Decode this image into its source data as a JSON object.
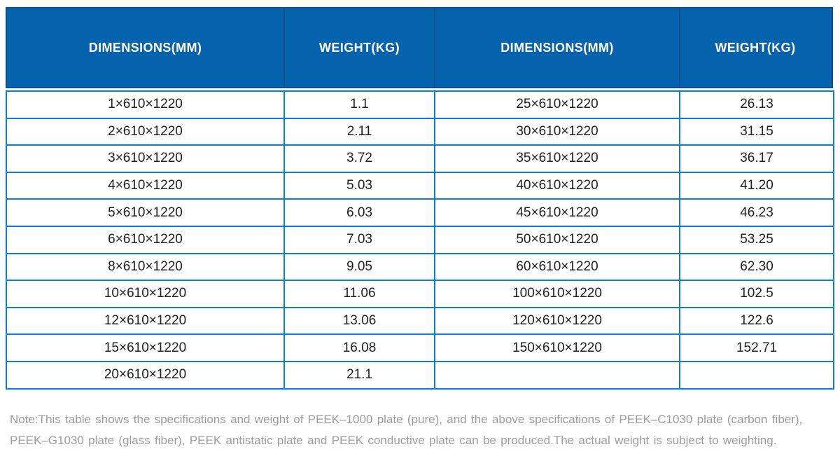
{
  "colors": {
    "header_bg": "#0562ad",
    "header_edge": "#0a4f92",
    "header_sep": "#0a4f92",
    "grid_blue": "#0f7ec6",
    "body_text": "#212121",
    "note_gray": "#9c9c9c",
    "page_bg": "#ffffff"
  },
  "table": {
    "headers": [
      "DIMENSIONS(MM)",
      "WEIGHT(KG)",
      "DIMENSIONS(MM)",
      "WEIGHT(KG)"
    ],
    "rows": [
      [
        "1×610×1220",
        "1.1",
        "25×610×1220",
        "26.13"
      ],
      [
        "2×610×1220",
        "2.11",
        "30×610×1220",
        "31.15"
      ],
      [
        "3×610×1220",
        "3.72",
        "35×610×1220",
        "36.17"
      ],
      [
        "4×610×1220",
        "5.03",
        "40×610×1220",
        "41.20"
      ],
      [
        "5×610×1220",
        "6.03",
        "45×610×1220",
        "46.23"
      ],
      [
        "6×610×1220",
        "7.03",
        "50×610×1220",
        "53.25"
      ],
      [
        "8×610×1220",
        "9.05",
        "60×610×1220",
        "62.30"
      ],
      [
        "10×610×1220",
        "11.06",
        "100×610×1220",
        "102.5"
      ],
      [
        "12×610×1220",
        "13.06",
        "120×610×1220",
        "122.6"
      ],
      [
        "15×610×1220",
        "16.08",
        "150×610×1220",
        "152.71"
      ],
      [
        "20×610×1220",
        "21.1",
        "",
        ""
      ]
    ]
  },
  "note": {
    "line1": "Note:This table shows the specifications and weight of PEEK–1000 plate (pure), and the above specifications of PEEK–C1030 plate (carbon fiber),",
    "line2": "PEEK–G1030 plate (glass fiber), PEEK antistatic plate and PEEK conductive plate can be produced.The actual weight is subject to weighting."
  }
}
